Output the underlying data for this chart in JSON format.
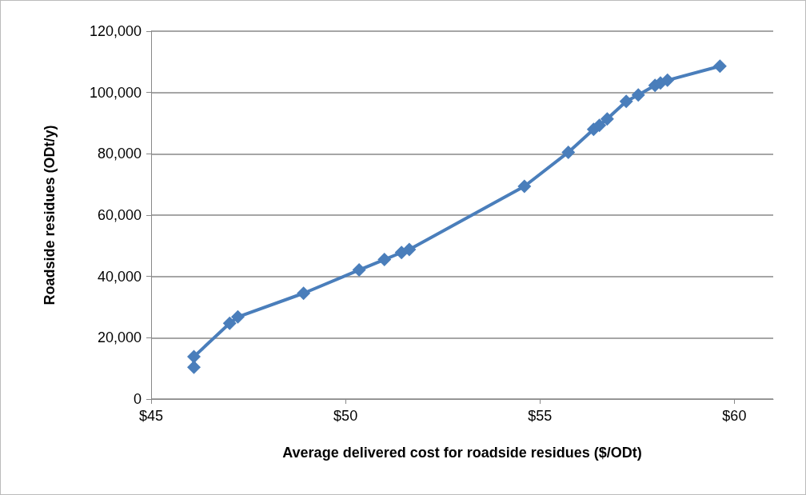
{
  "chart_data": {
    "type": "line",
    "xlabel": "Average delivered cost for roadside residues ($/ODt)",
    "ylabel": "Roadside residues (ODt/y)",
    "x": [
      46.1,
      46.1,
      47.02,
      47.23,
      48.92,
      50.35,
      51.0,
      51.44,
      51.64,
      54.6,
      55.73,
      56.38,
      56.53,
      56.73,
      57.22,
      57.53,
      57.96,
      58.1,
      58.28,
      59.63
    ],
    "series": [
      {
        "color": "#4a7ebb",
        "values": [
          10400,
          13800,
          24700,
          26800,
          34500,
          42100,
          45500,
          47800,
          48800,
          69400,
          80500,
          88000,
          89300,
          91400,
          97100,
          99200,
          102300,
          103100,
          104000,
          108600
        ]
      }
    ],
    "xlim": [
      45,
      61
    ],
    "xticks": [
      {
        "value": 45,
        "label": "$45"
      },
      {
        "value": 50,
        "label": "$50"
      },
      {
        "value": 55,
        "label": "$55"
      },
      {
        "value": 60,
        "label": "$60"
      }
    ],
    "ylim": [
      0,
      120000
    ],
    "yticks": [
      {
        "value": 0,
        "label": "0"
      },
      {
        "value": 20000,
        "label": "20,000"
      },
      {
        "value": 40000,
        "label": "40,000"
      },
      {
        "value": 60000,
        "label": "60,000"
      },
      {
        "value": 80000,
        "label": "80,000"
      },
      {
        "value": 100000,
        "label": "100,000"
      },
      {
        "value": 120000,
        "label": "120,000"
      }
    ],
    "grid": "y",
    "marker": "diamond",
    "line_style": "solid"
  }
}
